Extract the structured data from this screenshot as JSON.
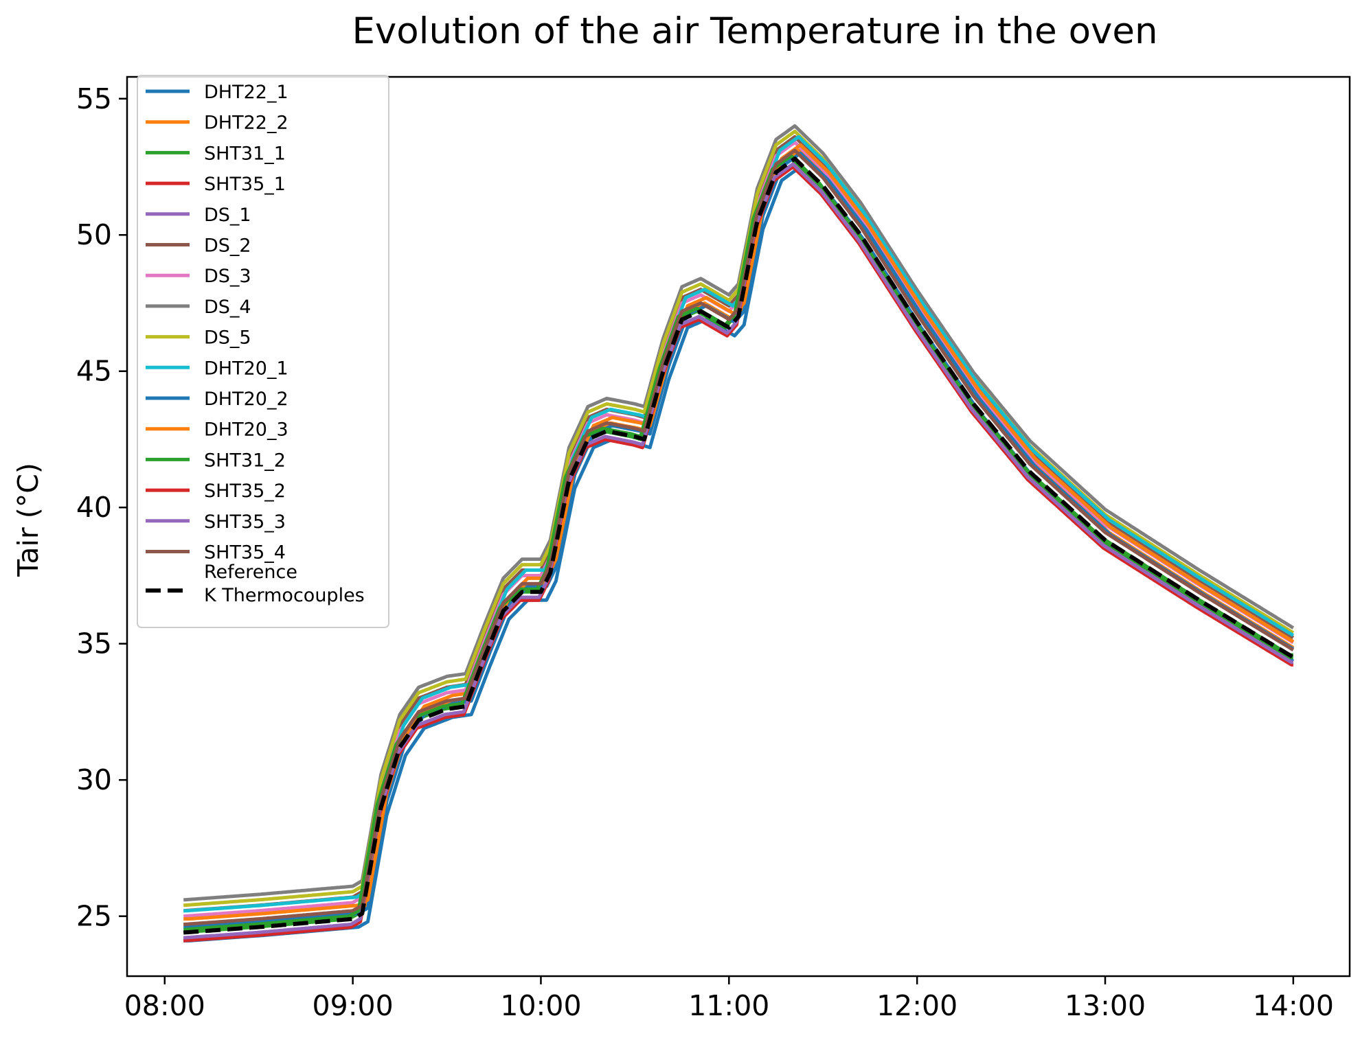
{
  "chart_data": {
    "type": "line",
    "title": "Evolution of the air Temperature in the oven",
    "xlabel": "",
    "ylabel": "Tair (°C)",
    "xlim": [
      7.8,
      14.3
    ],
    "ylim": [
      22.8,
      55.8
    ],
    "x_ticks": [
      {
        "value": 8,
        "label": "08:00"
      },
      {
        "value": 9,
        "label": "09:00"
      },
      {
        "value": 10,
        "label": "10:00"
      },
      {
        "value": 11,
        "label": "11:00"
      },
      {
        "value": 12,
        "label": "12:00"
      },
      {
        "value": 13,
        "label": "13:00"
      },
      {
        "value": 14,
        "label": "14:00"
      }
    ],
    "y_ticks": [
      {
        "value": 25,
        "label": "25"
      },
      {
        "value": 30,
        "label": "30"
      },
      {
        "value": 35,
        "label": "35"
      },
      {
        "value": 40,
        "label": "40"
      },
      {
        "value": 45,
        "label": "45"
      },
      {
        "value": 50,
        "label": "50"
      },
      {
        "value": 55,
        "label": "55"
      }
    ],
    "legend_position": "top-left",
    "grid": false,
    "reference_x": [
      8.1,
      8.5,
      9.0,
      9.05,
      9.15,
      9.25,
      9.35,
      9.5,
      9.6,
      9.7,
      9.8,
      9.9,
      10.0,
      10.05,
      10.15,
      10.25,
      10.35,
      10.5,
      10.55,
      10.65,
      10.75,
      10.85,
      11.0,
      11.05,
      11.15,
      11.25,
      11.35,
      11.5,
      11.7,
      12.0,
      12.3,
      12.6,
      13.0,
      13.5,
      14.0
    ],
    "series": [
      {
        "name": "DHT22_1",
        "color": "#1f77b4",
        "offset": -0.3,
        "lag": 0.03,
        "linestyle": "solid"
      },
      {
        "name": "DHT22_2",
        "color": "#ff7f0e",
        "offset": 0.3,
        "lag": 0.02,
        "linestyle": "solid"
      },
      {
        "name": "SHT31_1",
        "color": "#2ca02c",
        "offset": 0.0,
        "lag": -0.02,
        "linestyle": "solid"
      },
      {
        "name": "SHT35_1",
        "color": "#d62728",
        "offset": -0.3,
        "lag": -0.01,
        "linestyle": "solid"
      },
      {
        "name": "DS_1",
        "color": "#9467bd",
        "offset": -0.2,
        "lag": -0.01,
        "linestyle": "solid"
      },
      {
        "name": "DS_2",
        "color": "#8c564b",
        "offset": 0.8,
        "lag": 0.0,
        "linestyle": "solid"
      },
      {
        "name": "DS_3",
        "color": "#e377c2",
        "offset": 0.6,
        "lag": 0.0,
        "linestyle": "solid"
      },
      {
        "name": "DS_4",
        "color": "#7f7f7f",
        "offset": 1.2,
        "lag": 0.0,
        "linestyle": "solid"
      },
      {
        "name": "DS_5",
        "color": "#bcbd22",
        "offset": 1.0,
        "lag": 0.0,
        "linestyle": "solid"
      },
      {
        "name": "DHT20_1",
        "color": "#17becf",
        "offset": 0.8,
        "lag": 0.02,
        "linestyle": "solid"
      },
      {
        "name": "DHT20_2",
        "color": "#1f77b4",
        "offset": 0.2,
        "lag": 0.03,
        "linestyle": "solid"
      },
      {
        "name": "DHT20_3",
        "color": "#ff7f0e",
        "offset": 0.5,
        "lag": 0.03,
        "linestyle": "solid"
      },
      {
        "name": "SHT31_2",
        "color": "#2ca02c",
        "offset": 0.1,
        "lag": -0.02,
        "linestyle": "solid"
      },
      {
        "name": "SHT35_2",
        "color": "#d62728",
        "offset": -0.3,
        "lag": -0.01,
        "linestyle": "solid"
      },
      {
        "name": "SHT35_3",
        "color": "#9467bd",
        "offset": -0.2,
        "lag": -0.01,
        "linestyle": "solid"
      },
      {
        "name": "SHT35_4",
        "color": "#8c564b",
        "offset": 0.3,
        "lag": 0.0,
        "linestyle": "solid"
      },
      {
        "name": "Reference\nK Thermocouples",
        "color": "#000000",
        "offset": 0.0,
        "lag": 0.0,
        "linestyle": "dashed",
        "values": [
          24.4,
          24.6,
          24.9,
          25.1,
          29.0,
          31.2,
          32.2,
          32.6,
          32.7,
          34.5,
          36.2,
          36.9,
          36.9,
          37.6,
          41.0,
          42.5,
          42.8,
          42.6,
          42.5,
          45.0,
          46.9,
          47.2,
          46.6,
          47.0,
          50.5,
          52.3,
          52.8,
          51.8,
          50.0,
          46.8,
          43.8,
          41.3,
          38.8,
          36.6,
          34.5
        ]
      }
    ]
  }
}
